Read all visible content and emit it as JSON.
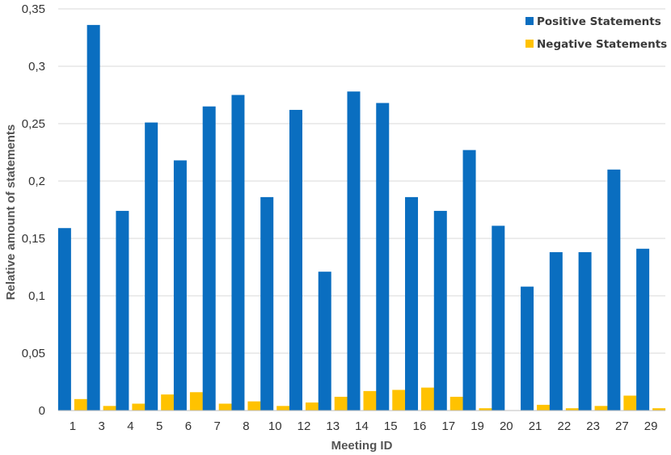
{
  "chart_data": {
    "type": "bar",
    "title": "",
    "xlabel": "Meeting ID",
    "ylabel": "Relative amount of statements",
    "ylim": [
      0,
      0.35
    ],
    "yticks": [
      {
        "value": 0,
        "label": "0"
      },
      {
        "value": 0.05,
        "label": "0,05"
      },
      {
        "value": 0.1,
        "label": "0,1"
      },
      {
        "value": 0.15,
        "label": "0,15"
      },
      {
        "value": 0.2,
        "label": "0,2"
      },
      {
        "value": 0.25,
        "label": "0,25"
      },
      {
        "value": 0.3,
        "label": "0,3"
      },
      {
        "value": 0.35,
        "label": "0,35"
      }
    ],
    "grid": true,
    "legend_position": "top-right",
    "categories": [
      "1",
      "3",
      "4",
      "5",
      "6",
      "7",
      "8",
      "10",
      "12",
      "13",
      "14",
      "15",
      "16",
      "17",
      "19",
      "20",
      "21",
      "22",
      "23",
      "27",
      "29"
    ],
    "series": [
      {
        "name": "Positive Statements",
        "color": "#0A6EC0",
        "values": [
          0.159,
          0.336,
          0.174,
          0.251,
          0.218,
          0.265,
          0.275,
          0.186,
          0.262,
          0.121,
          0.278,
          0.268,
          0.186,
          0.174,
          0.227,
          0.161,
          0.108,
          0.138,
          0.138,
          0.21,
          0.141
        ]
      },
      {
        "name": "Negative Statements",
        "color": "#FFC200",
        "values": [
          0.01,
          0.004,
          0.006,
          0.014,
          0.016,
          0.006,
          0.008,
          0.004,
          0.007,
          0.012,
          0.017,
          0.018,
          0.02,
          0.012,
          0.002,
          0.0,
          0.005,
          0.002,
          0.004,
          0.013,
          0.002
        ]
      }
    ]
  }
}
